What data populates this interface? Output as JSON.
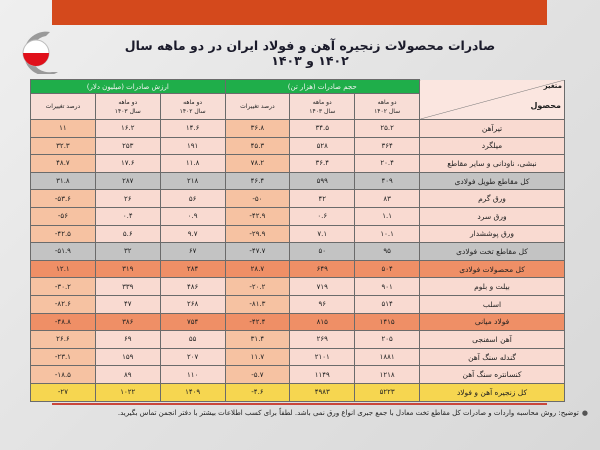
{
  "title": "صادرات محصولات زنجیره آهن و فولاد ایران در دو ماهه سال ۱۴۰۲ و ۱۴۰۳",
  "colors": {
    "topbar": "#d4491c",
    "header_green": "#1fae4a",
    "gray_total": "#c3c3c3",
    "orange_total": "#ef8f66",
    "grand_total": "#f6d650"
  },
  "header": {
    "variable": "متغیر",
    "product": "محصول",
    "volume_group": "حجم صادرات (هزار تن)",
    "value_group": "ارزش صادرات (میلیون دلار)",
    "col_1402_line1": "دو ماهه",
    "col_1402_line2": "سال ۱۴۰۲",
    "col_1403_line1": "دو ماهه",
    "col_1403_line2": "سال ۱۴۰۳",
    "change": "درصد تغییرات"
  },
  "rows": [
    {
      "type": "normal",
      "product": "تیرآهن",
      "v1402": "۲۵.۲",
      "v1403": "۳۴.۵",
      "vchg": "۳۶.۸",
      "d1402": "۱۴.۶",
      "d1403": "۱۶.۲",
      "dchg": "۱۱"
    },
    {
      "type": "normal",
      "product": "میلگرد",
      "v1402": "۳۶۴",
      "v1403": "۵۲۸",
      "vchg": "۴۵.۳",
      "d1402": "۱۹۱",
      "d1403": "۲۵۳",
      "dchg": "۳۲.۳"
    },
    {
      "type": "normal",
      "product": "نبشی، ناودانی و سایر مقاطع",
      "v1402": "۲۰.۴",
      "v1403": "۳۶.۴",
      "vchg": "۷۸.۲",
      "d1402": "۱۱.۸",
      "d1403": "۱۷.۶",
      "dchg": "۴۸.۷"
    },
    {
      "type": "gray",
      "product": "کل مقاطع طویل فولادی",
      "v1402": "۴۰۹",
      "v1403": "۵۹۹",
      "vchg": "۴۶.۴",
      "d1402": "۲۱۸",
      "d1403": "۲۸۷",
      "dchg": "۳۱.۸"
    },
    {
      "type": "normal",
      "product": "ورق گرم",
      "v1402": "۸۳",
      "v1403": "۴۲",
      "vchg": "-۵۰",
      "d1402": "۵۶",
      "d1403": "۲۶",
      "dchg": "-۵۳.۶"
    },
    {
      "type": "normal",
      "product": "ورق سرد",
      "v1402": "۱.۱",
      "v1403": "۰.۶",
      "vchg": "-۴۲.۹",
      "d1402": "۰.۹",
      "d1403": "۰.۴",
      "dchg": "-۵۶"
    },
    {
      "type": "normal",
      "product": "ورق پوششدار",
      "v1402": "۱۰.۱",
      "v1403": "۷.۱",
      "vchg": "-۲۹.۹",
      "d1402": "۹.۷",
      "d1403": "۵.۶",
      "dchg": "-۴۲.۵"
    },
    {
      "type": "gray",
      "product": "کل مقاطع تخت فولادی",
      "v1402": "۹۵",
      "v1403": "۵۰",
      "vchg": "-۴۷.۷",
      "d1402": "۶۷",
      "d1403": "۳۲",
      "dchg": "-۵۱.۹"
    },
    {
      "type": "orange",
      "product": "کل محصولات فولادی",
      "v1402": "۵۰۴",
      "v1403": "۶۴۹",
      "vchg": "۲۸.۷",
      "d1402": "۲۸۴",
      "d1403": "۳۱۹",
      "dchg": "۱۲.۱"
    },
    {
      "type": "normal",
      "product": "بیلت و بلوم",
      "v1402": "۹۰۱",
      "v1403": "۷۱۹",
      "vchg": "-۲۰.۲",
      "d1402": "۴۸۶",
      "d1403": "۳۳۹",
      "dchg": "-۳۰.۲"
    },
    {
      "type": "normal",
      "product": "اسلب",
      "v1402": "۵۱۴",
      "v1403": "۹۶",
      "vchg": "-۸۱.۳",
      "d1402": "۲۶۸",
      "d1403": "۴۷",
      "dchg": "-۸۲.۶"
    },
    {
      "type": "orange",
      "product": "فولاد میانی",
      "v1402": "۱۴۱۵",
      "v1403": "۸۱۵",
      "vchg": "-۴۲.۴",
      "d1402": "۷۵۴",
      "d1403": "۳۸۶",
      "dchg": "-۴۸.۸"
    },
    {
      "type": "normal",
      "product": "آهن اسفنجی",
      "v1402": "۲۰۵",
      "v1403": "۲۶۹",
      "vchg": "۳۱.۴",
      "d1402": "۵۵",
      "d1403": "۶۹",
      "dchg": "۲۶.۶"
    },
    {
      "type": "normal",
      "product": "گندله سنگ آهن",
      "v1402": "۱۸۸۱",
      "v1403": "۲۱۰۱",
      "vchg": "۱۱.۷",
      "d1402": "۲۰۷",
      "d1403": "۱۵۹",
      "dchg": "-۲۳.۱"
    },
    {
      "type": "normal",
      "product": "کنسانتره سنگ آهن",
      "v1402": "۱۲۱۸",
      "v1403": "۱۱۴۹",
      "vchg": "-۵.۷",
      "d1402": "۱۱۰",
      "d1403": "۸۹",
      "dchg": "-۱۸.۵"
    },
    {
      "type": "yellow",
      "product": "کل زنجیره آهن و فولاد",
      "v1402": "۵۲۲۳",
      "v1403": "۴۹۸۳",
      "vchg": "-۴.۶",
      "d1402": "۱۴۰۹",
      "d1403": "۱۰۲۲",
      "dchg": "-۲۷"
    }
  ],
  "footnote": "توضیح: روش محاسبه واردات و صادرات کل مقاطع تخت معادل با جمع جبری انواع ورق نمی باشد. لطفاً برای کسب اطلاعات بیشتر با دفتر انجمن تماس بگیرید."
}
